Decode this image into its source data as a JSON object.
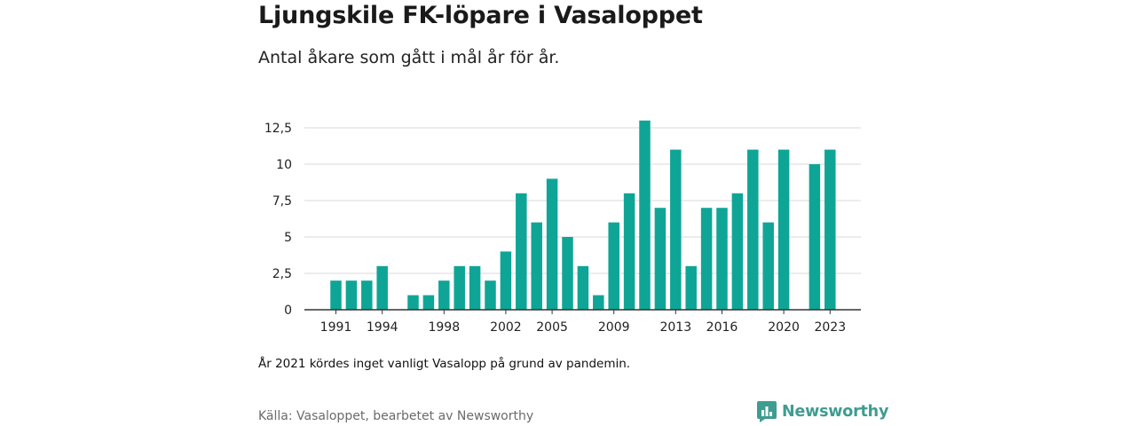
{
  "title": "Ljungskile FK-löpare i Vasaloppet",
  "subtitle": "Antal åkare som gått i mål år för år.",
  "note": "År 2021 kördes inget vanligt Vasalopp på grund av pandemin.",
  "source": "Källa: Vasaloppet, bearbetet av Newsworthy",
  "logo": {
    "text": "Newsworthy",
    "icon": "newsworthy-logo-icon",
    "color": "#3e9c91"
  },
  "chart_data": {
    "type": "bar",
    "title": "Ljungskile FK-löpare i Vasaloppet",
    "subtitle": "Antal åkare som gått i mål år för år.",
    "xlabel": "",
    "ylabel": "",
    "ylim": [
      0,
      13
    ],
    "grid": true,
    "bar_color": "#0fa596",
    "y_ticks": [
      0,
      2.5,
      5,
      7.5,
      10,
      12.5
    ],
    "y_tick_labels": [
      "0",
      "2,5",
      "5",
      "7,5",
      "10",
      "12,5"
    ],
    "x_tick_labels": [
      "1991",
      "1994",
      "1998",
      "2002",
      "2005",
      "2009",
      "2013",
      "2016",
      "2020",
      "2023"
    ],
    "categories": [
      1991,
      1992,
      1993,
      1994,
      1995,
      1996,
      1997,
      1998,
      1999,
      2000,
      2001,
      2002,
      2003,
      2004,
      2005,
      2006,
      2007,
      2008,
      2009,
      2010,
      2011,
      2012,
      2013,
      2014,
      2015,
      2016,
      2017,
      2018,
      2019,
      2020,
      2021,
      2022,
      2023
    ],
    "values": [
      2,
      2,
      2,
      3,
      0,
      1,
      1,
      2,
      3,
      3,
      2,
      4,
      8,
      6,
      9,
      5,
      3,
      1,
      6,
      8,
      13,
      7,
      11,
      3,
      7,
      7,
      8,
      11,
      6,
      11,
      0,
      10,
      11
    ]
  }
}
